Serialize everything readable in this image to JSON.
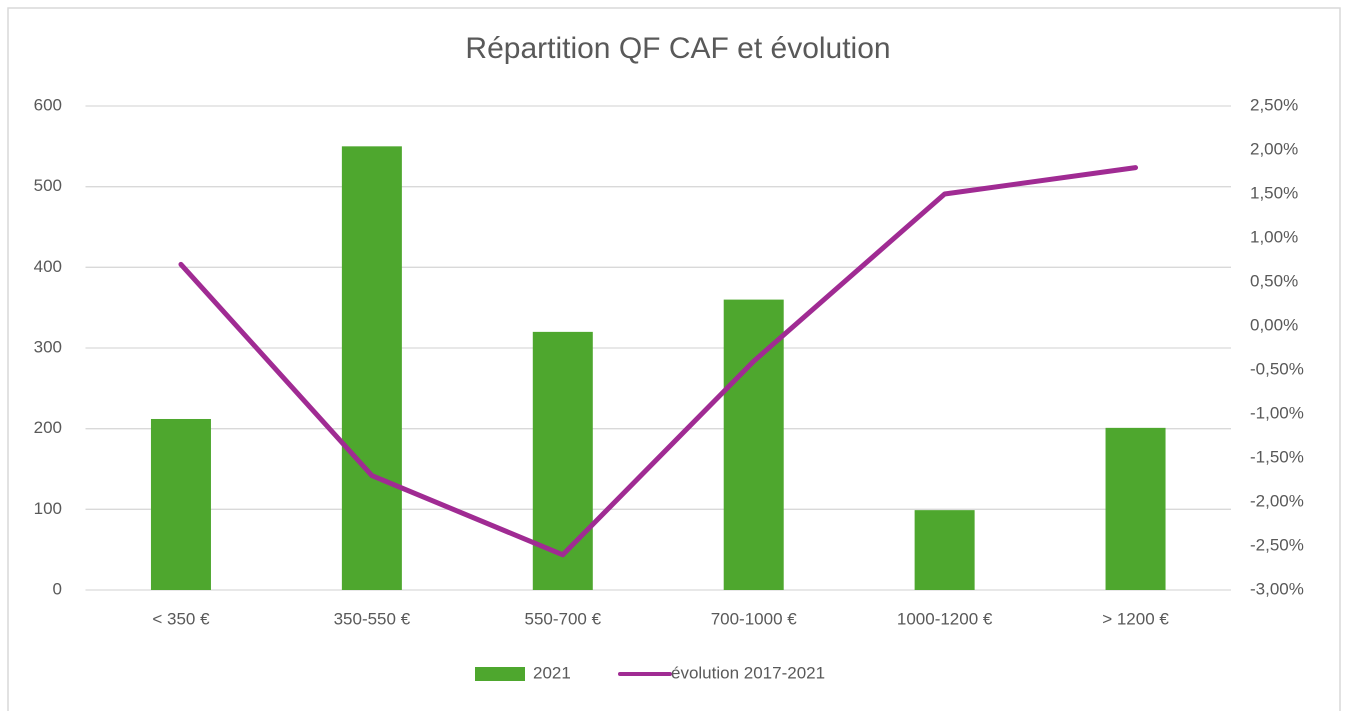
{
  "chart_data": {
    "type": "bar_line",
    "title": "Répartition QF CAF et évolution",
    "categories": [
      "< 350 €",
      "350-550 €",
      "550-700 €",
      "700-1000 €",
      "1000-1200 €",
      "> 1200 €"
    ],
    "series": [
      {
        "name": "2021",
        "type": "bar",
        "color": "#4ea72e",
        "values": [
          212,
          550,
          320,
          360,
          99,
          201
        ]
      },
      {
        "name": "évolution 2017-2021",
        "type": "line",
        "axis": "y2",
        "color": "#a02b93",
        "values": [
          0.7,
          -1.7,
          -2.6,
          -0.4,
          1.5,
          1.8
        ]
      }
    ],
    "ylim": [
      0,
      600
    ],
    "yticks": [
      0,
      100,
      200,
      300,
      400,
      500,
      600
    ],
    "y2lim": [
      -3,
      2.5
    ],
    "y2ticks": [
      {
        "value": -3,
        "label": "-3,00%"
      },
      {
        "value": -2.5,
        "label": "-2,50%"
      },
      {
        "value": -2,
        "label": "-2,00%"
      },
      {
        "value": -1.5,
        "label": "-1,50%"
      },
      {
        "value": -1,
        "label": "-1,00%"
      },
      {
        "value": -0.5,
        "label": "-0,50%"
      },
      {
        "value": 0,
        "label": "0,00%"
      },
      {
        "value": 0.5,
        "label": "0,50%"
      },
      {
        "value": 1,
        "label": "1,00%"
      },
      {
        "value": 1.5,
        "label": "1,50%"
      },
      {
        "value": 2,
        "label": "2,00%"
      },
      {
        "value": 2.5,
        "label": "2,50%"
      }
    ],
    "grid": true,
    "legend": "bottom"
  }
}
